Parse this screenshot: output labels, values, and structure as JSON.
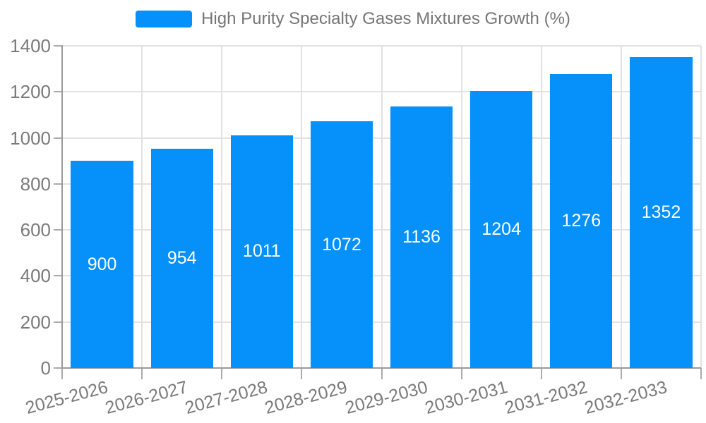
{
  "chart_data": {
    "type": "bar",
    "title": "",
    "legend": [
      "High Purity Specialty Gases Mixtures Growth (%)"
    ],
    "legend_position": "top-center",
    "categories": [
      "2025-2026",
      "2026-2027",
      "2027-2028",
      "2028-2029",
      "2029-2030",
      "2030-2031",
      "2031-2032",
      "2032-2033"
    ],
    "values": [
      900,
      954,
      1011,
      1072,
      1136,
      1204,
      1276,
      1352
    ],
    "xlabel": "",
    "ylabel": "",
    "ylim": [
      0,
      1400
    ],
    "yticks": [
      0,
      200,
      400,
      600,
      800,
      1000,
      1200,
      1400
    ],
    "grid": true,
    "x_tick_label_rotation_deg": 15,
    "bar_color": "#0590FA",
    "bar_value_label_color": "#FFFFFF",
    "axis_text_color": "#7A7A7A",
    "grid_color": "#E2E2E2",
    "axis_line_color": "#9B9B9B"
  }
}
